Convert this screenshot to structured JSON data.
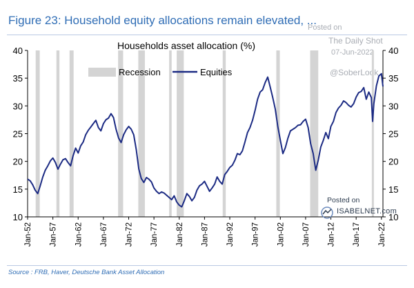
{
  "figure": {
    "title": "Figure 23: Household equity allocations remain elevated, ...",
    "source": "Source : FRB, Haver, Deutsche Bank Asset Allocation"
  },
  "watermark": {
    "posted": "Posted on",
    "site": "The Daily Shot",
    "date": "07-Jun-2022",
    "handle": "@SoberLook",
    "isabel_posted": "Posted on",
    "isabel_site": "ISABELNET.com"
  },
  "colors": {
    "line": "#1b2a83",
    "recession": "#d4d4d4",
    "title": "#2f6db5"
  },
  "chart_data": {
    "type": "line",
    "title": "Households asset allocation (%)",
    "xlabel": "",
    "ylabel": "",
    "x_range": [
      1952.0,
      2022.3
    ],
    "ylim": [
      10,
      40
    ],
    "y_ticks": [
      10,
      15,
      20,
      25,
      30,
      35,
      40
    ],
    "y_tick_labels": [
      "10",
      "15",
      "20",
      "25",
      "30",
      "35",
      "40"
    ],
    "right_axis_ticks": [
      10,
      15,
      20,
      25,
      30,
      35,
      40
    ],
    "x_ticks": [
      1952,
      1957,
      1962,
      1967,
      1972,
      1977,
      1982,
      1987,
      1992,
      1997,
      2002,
      2007,
      2012,
      2017,
      2022
    ],
    "x_tick_labels": [
      "Jan-52",
      "Jan-57",
      "Jan-62",
      "Jan-67",
      "Jan-72",
      "Jan-77",
      "Jan-82",
      "Jan-87",
      "Jan-92",
      "Jan-97",
      "Jan-02",
      "Jan-07",
      "Jan-12",
      "Jan-17",
      "Jan-22"
    ],
    "grid": false,
    "legend": {
      "placement": "top-left",
      "entries": [
        "Recession",
        "Equities"
      ]
    },
    "recessions": [
      [
        1953.6,
        1954.4
      ],
      [
        1957.7,
        1958.3
      ],
      [
        1960.3,
        1961.1
      ],
      [
        1969.9,
        1970.9
      ],
      [
        1973.9,
        1975.2
      ],
      [
        1980.0,
        1980.5
      ],
      [
        1981.5,
        1982.9
      ],
      [
        1990.6,
        1991.2
      ],
      [
        2001.2,
        2001.9
      ],
      [
        2007.9,
        2009.5
      ],
      [
        2020.1,
        2020.4
      ]
    ],
    "series": [
      {
        "name": "Equities",
        "x": [
          1952.0,
          1952.5,
          1953.0,
          1953.5,
          1954.0,
          1954.5,
          1955.0,
          1955.5,
          1956.0,
          1956.5,
          1957.0,
          1957.5,
          1958.0,
          1958.5,
          1959.0,
          1959.5,
          1960.0,
          1960.5,
          1961.0,
          1961.5,
          1962.0,
          1962.5,
          1963.0,
          1963.5,
          1964.0,
          1964.5,
          1965.0,
          1965.5,
          1966.0,
          1966.5,
          1967.0,
          1967.5,
          1968.0,
          1968.5,
          1969.0,
          1969.5,
          1970.0,
          1970.5,
          1971.0,
          1971.5,
          1972.0,
          1972.5,
          1973.0,
          1973.5,
          1974.0,
          1974.5,
          1975.0,
          1975.5,
          1976.0,
          1976.5,
          1977.0,
          1977.5,
          1978.0,
          1978.5,
          1979.0,
          1979.5,
          1980.0,
          1980.5,
          1981.0,
          1981.5,
          1982.0,
          1982.5,
          1983.0,
          1983.5,
          1984.0,
          1984.5,
          1985.0,
          1985.5,
          1986.0,
          1986.5,
          1987.0,
          1987.5,
          1988.0,
          1988.5,
          1989.0,
          1989.5,
          1990.0,
          1990.5,
          1991.0,
          1991.5,
          1992.0,
          1992.5,
          1993.0,
          1993.5,
          1994.0,
          1994.5,
          1995.0,
          1995.5,
          1996.0,
          1996.5,
          1997.0,
          1997.5,
          1998.0,
          1998.5,
          1999.0,
          1999.5,
          2000.0,
          2000.5,
          2001.0,
          2001.5,
          2002.0,
          2002.5,
          2003.0,
          2003.5,
          2004.0,
          2004.5,
          2005.0,
          2005.5,
          2006.0,
          2006.5,
          2007.0,
          2007.5,
          2008.0,
          2008.5,
          2009.0,
          2009.5,
          2010.0,
          2010.5,
          2011.0,
          2011.5,
          2012.0,
          2012.5,
          2013.0,
          2013.5,
          2014.0,
          2014.5,
          2015.0,
          2015.5,
          2016.0,
          2016.5,
          2017.0,
          2017.5,
          2018.0,
          2018.5,
          2019.0,
          2019.5,
          2020.0,
          2020.25,
          2020.5,
          2021.0,
          2021.5,
          2022.0,
          2022.3
        ],
        "values": [
          16.8,
          16.5,
          15.8,
          14.8,
          14.2,
          15.6,
          17.2,
          18.4,
          19.2,
          20.1,
          20.6,
          19.8,
          18.6,
          19.5,
          20.3,
          20.5,
          19.8,
          19.2,
          21.0,
          22.4,
          21.5,
          22.8,
          23.5,
          24.8,
          25.6,
          26.2,
          26.8,
          27.4,
          26.1,
          25.5,
          26.8,
          27.5,
          27.8,
          28.6,
          27.9,
          25.8,
          24.2,
          23.4,
          24.8,
          25.7,
          26.3,
          25.8,
          24.8,
          22.1,
          18.6,
          16.9,
          16.2,
          17.1,
          16.8,
          16.3,
          15.2,
          14.6,
          14.2,
          14.5,
          14.3,
          13.9,
          13.5,
          13.1,
          13.8,
          12.7,
          12.1,
          11.8,
          12.9,
          14.2,
          13.7,
          12.9,
          13.5,
          14.8,
          15.6,
          15.9,
          16.4,
          15.5,
          14.6,
          15.2,
          15.9,
          17.2,
          16.4,
          15.9,
          17.6,
          18.2,
          18.9,
          19.3,
          20.2,
          21.4,
          21.2,
          21.9,
          23.5,
          25.2,
          26.1,
          27.4,
          29.2,
          31.2,
          32.5,
          32.9,
          34.2,
          35.2,
          33.4,
          31.5,
          29.4,
          26.3,
          23.8,
          21.4,
          22.5,
          24.2,
          25.5,
          25.8,
          26.1,
          26.5,
          26.6,
          27.2,
          27.6,
          26.1,
          23.2,
          21.4,
          18.4,
          20.2,
          22.6,
          23.8,
          25.2,
          24.1,
          26.3,
          27.2,
          28.8,
          29.6,
          30.1,
          30.9,
          30.6,
          30.1,
          29.8,
          30.4,
          31.6,
          32.4,
          32.6,
          33.3,
          31.2,
          32.5,
          31.5,
          27.2,
          30.4,
          33.6,
          35.4,
          35.8,
          33.5
        ]
      }
    ]
  }
}
